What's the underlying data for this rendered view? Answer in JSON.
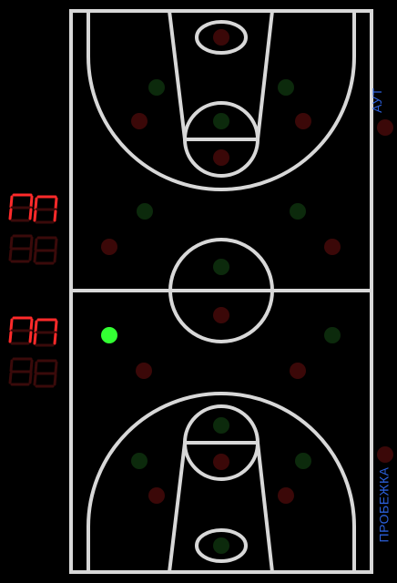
{
  "colors": {
    "background": "#000000",
    "court_lines": "#d8d8d8",
    "digit_on": "#ff2a2a",
    "digit_off": "#3a0a0a",
    "label": "#2b5fd9",
    "dot_red_dim": "#3b0808",
    "dot_green_dim": "#0c2a0c",
    "ball": "#33ff33"
  },
  "scoreboard": {
    "top_score": {
      "tens_on": true,
      "ones_on": true,
      "glyph": "0"
    },
    "bottom_score": {
      "tens_on": true,
      "ones_on": true,
      "glyph": "0"
    }
  },
  "labels": {
    "out": "АУТ",
    "run": "ПРОБЕЖКА"
  },
  "ball": {
    "color_name": "active-player-dot"
  }
}
